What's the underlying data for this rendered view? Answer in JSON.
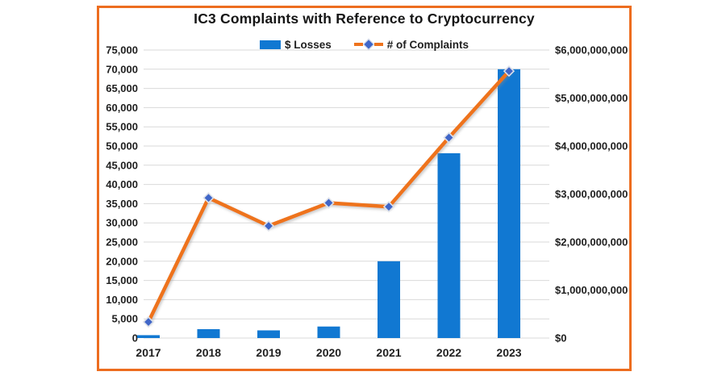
{
  "chart": {
    "title": "IC3 Complaints with Reference to Cryptocurrency",
    "legend": {
      "losses_label": "$ Losses",
      "complaints_label": "# of Complaints"
    }
  },
  "chart_data": {
    "type": "combo-bar-line",
    "title": "IC3 Complaints with Reference to Cryptocurrency",
    "categories": [
      "2017",
      "2018",
      "2019",
      "2020",
      "2021",
      "2022",
      "2023"
    ],
    "series": [
      {
        "name": "$ Losses",
        "type": "bar",
        "axis": "right",
        "values": [
          60000000,
          185000000,
          160000000,
          240000000,
          1600000000,
          3850000000,
          5600000000
        ]
      },
      {
        "name": "# of Complaints",
        "type": "line",
        "axis": "left",
        "values": [
          4200,
          36500,
          29200,
          35200,
          34200,
          52200,
          69500
        ]
      }
    ],
    "left_axis": {
      "min": 0,
      "max": 75000,
      "step": 5000,
      "tick_labels": [
        "0",
        "5,000",
        "10,000",
        "15,000",
        "20,000",
        "25,000",
        "30,000",
        "35,000",
        "40,000",
        "45,000",
        "50,000",
        "55,000",
        "60,000",
        "65,000",
        "70,000",
        "75,000"
      ]
    },
    "right_axis": {
      "min": 0,
      "max": 6000000000,
      "step": 1000000000,
      "tick_labels": [
        "$0",
        "$1,000,000,000",
        "$2,000,000,000",
        "$3,000,000,000",
        "$4,000,000,000",
        "$5,000,000,000",
        "$6,000,000,000"
      ]
    },
    "grid": true,
    "legend_position": "top-center",
    "colors": {
      "bar": "#1178D2",
      "line": "#EE731D",
      "marker": "#4066C8",
      "marker_border": "#DDE1E9",
      "frame_border": "#ED6D1F",
      "gridline": "#D9D9D9",
      "text": "#1F1F1F"
    }
  }
}
